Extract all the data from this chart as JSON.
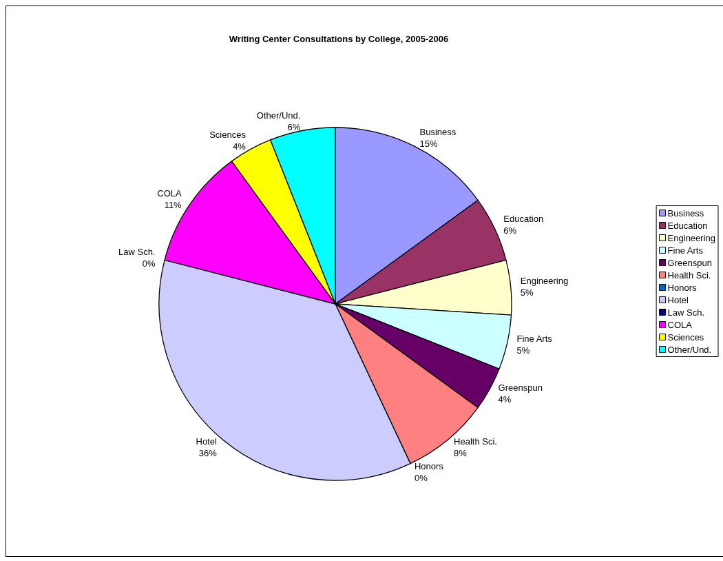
{
  "chart_data": {
    "type": "pie",
    "title": "Writing Center Consultations by College, 2005-2006",
    "categories": [
      "Business",
      "Education",
      "Engineering",
      "Fine Arts",
      "Greenspun",
      "Health Sci.",
      "Honors",
      "Hotel",
      "Law Sch.",
      "COLA",
      "Sciences",
      "Other/Und."
    ],
    "values": [
      15,
      6,
      5,
      5,
      4,
      8,
      0,
      36,
      0,
      11,
      4,
      6
    ],
    "value_labels": [
      "15%",
      "6%",
      "5%",
      "5%",
      "4%",
      "8%",
      "0%",
      "36%",
      "0%",
      "11%",
      "4%",
      "6%"
    ],
    "colors": [
      "#9999ff",
      "#993366",
      "#ffffcc",
      "#ccffff",
      "#660066",
      "#ff8080",
      "#0066cc",
      "#ccccff",
      "#000080",
      "#ff00ff",
      "#ffff00",
      "#00ffff"
    ],
    "legend": "right"
  }
}
